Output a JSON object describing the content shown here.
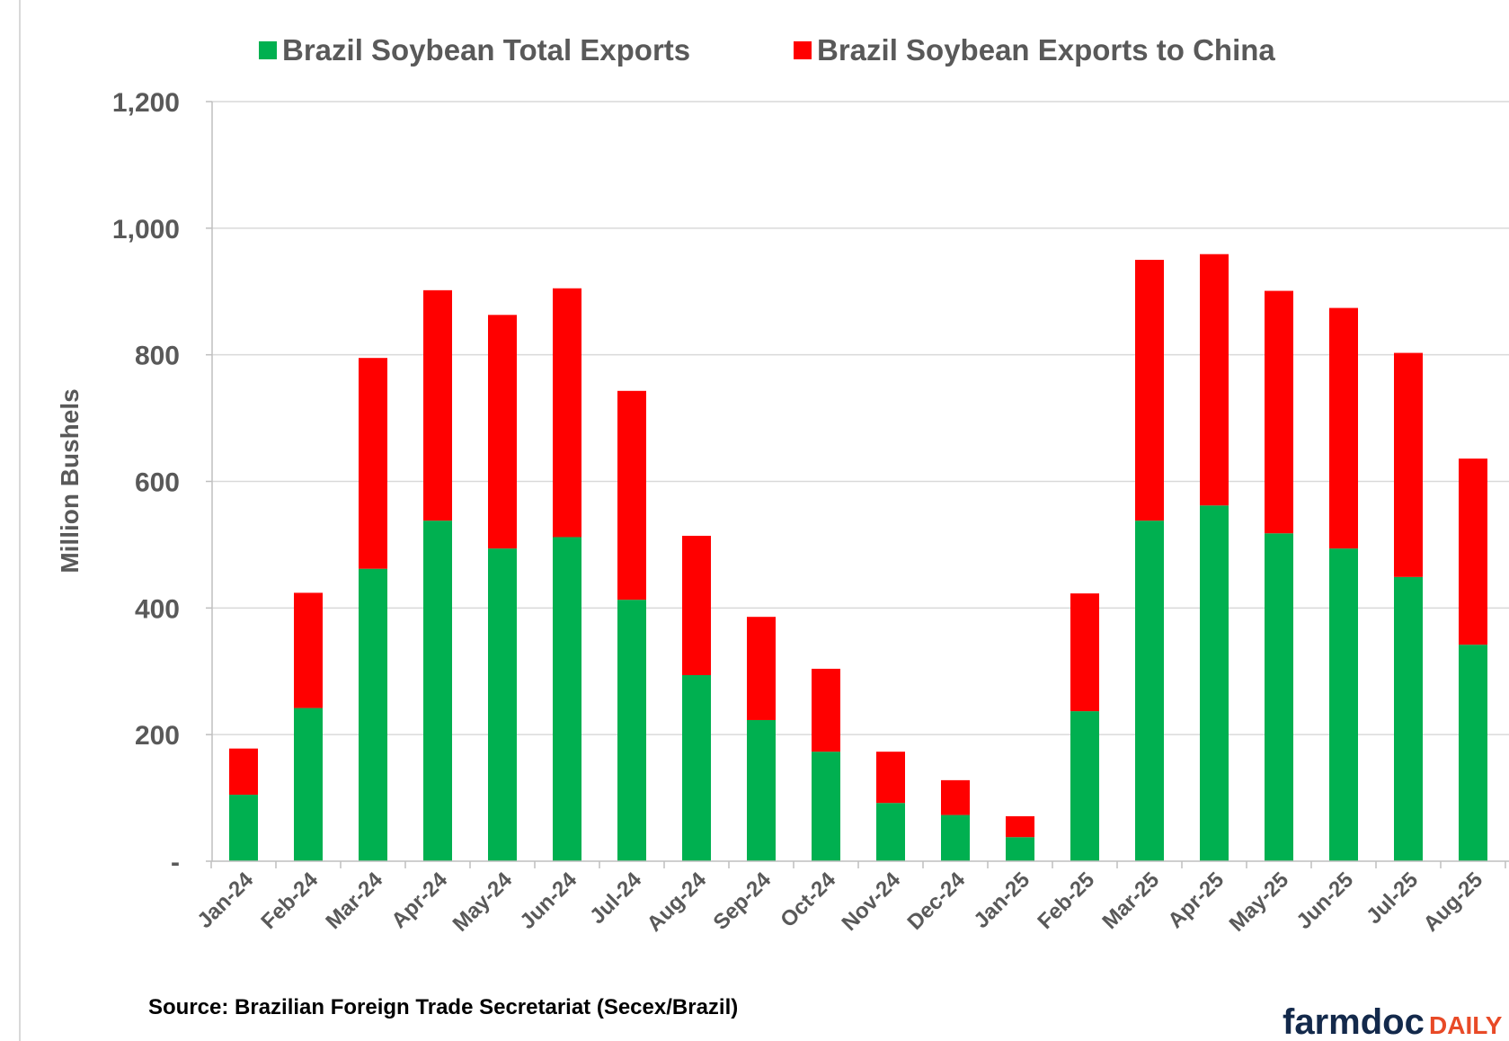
{
  "chart_data": {
    "type": "bar",
    "stacked": true,
    "categories": [
      "Jan-24",
      "Feb-24",
      "Mar-24",
      "Apr-24",
      "May-24",
      "Jun-24",
      "Jul-24",
      "Aug-24",
      "Sep-24",
      "Oct-24",
      "Nov-24",
      "Dec-24",
      "Jan-25",
      "Feb-25",
      "Mar-25",
      "Apr-25",
      "May-25",
      "Jun-25",
      "Jul-25",
      "Aug-25"
    ],
    "series": [
      {
        "name": "Brazil Soybean Total Exports",
        "color": "#00b050",
        "values": [
          105,
          242,
          462,
          538,
          494,
          512,
          413,
          294,
          223,
          173,
          92,
          73,
          38,
          237,
          538,
          562,
          518,
          494,
          449,
          342
        ]
      },
      {
        "name": "Brazil Soybean Exports to China",
        "color": "#ff0000",
        "values": [
          73,
          182,
          333,
          364,
          369,
          393,
          330,
          220,
          163,
          131,
          81,
          55,
          33,
          186,
          412,
          397,
          383,
          380,
          354,
          294
        ]
      }
    ],
    "ylabel": "Million Bushels",
    "ylim": [
      0,
      1200
    ],
    "yticks": [
      0,
      200,
      400,
      600,
      800,
      1000,
      1200
    ],
    "ytick_labels": [
      "-",
      "200",
      "400",
      "600",
      "800",
      "1,000",
      "1,200"
    ],
    "grid": true,
    "legend_position": "top"
  },
  "source_text": "Source: Brazilian Foreign Trade Secretariat (Secex/Brazil)",
  "logo": {
    "part1": "farmdoc",
    "part2": "DAILY"
  }
}
